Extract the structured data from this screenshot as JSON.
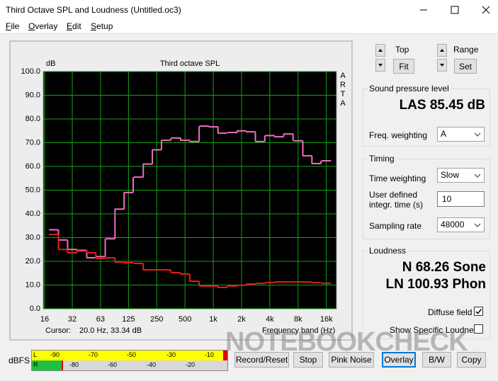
{
  "window": {
    "title": "Third Octave SPL and Loudness (Untitled.oc3)"
  },
  "menu": [
    "File",
    "Overlay",
    "Edit",
    "Setup"
  ],
  "chart_data": {
    "type": "step",
    "title": "Third octave SPL",
    "y_label": "dB",
    "x_label": "Frequency band (Hz)",
    "side_label": "ARTA",
    "cursor_label": "Cursor:",
    "cursor_value": "20.0 Hz, 33.34 dB",
    "x_scale": "log",
    "xlim": [
      15.45,
      20500
    ],
    "ylim": [
      0,
      100
    ],
    "xticks": [
      {
        "value": 16,
        "label": "16"
      },
      {
        "value": 31.5,
        "label": "32"
      },
      {
        "value": 63,
        "label": "63"
      },
      {
        "value": 125,
        "label": "125"
      },
      {
        "value": 250,
        "label": "250"
      },
      {
        "value": 500,
        "label": "500"
      },
      {
        "value": 1000,
        "label": "1k"
      },
      {
        "value": 2000,
        "label": "2k"
      },
      {
        "value": 4000,
        "label": "4k"
      },
      {
        "value": 8000,
        "label": "8k"
      },
      {
        "value": 16000,
        "label": "16k"
      }
    ],
    "yticks": [
      {
        "value": 0,
        "label": "0.0"
      },
      {
        "value": 10,
        "label": "10.0"
      },
      {
        "value": 20,
        "label": "20.0"
      },
      {
        "value": 30,
        "label": "30.0"
      },
      {
        "value": 40,
        "label": "40.0"
      },
      {
        "value": 50,
        "label": "50.0"
      },
      {
        "value": 60,
        "label": "60.0"
      },
      {
        "value": 70,
        "label": "70.0"
      },
      {
        "value": 80,
        "label": "80.0"
      },
      {
        "value": 90,
        "label": "90.0"
      },
      {
        "value": 100,
        "label": "100.0"
      }
    ],
    "grid": true,
    "grid_color": "#13a313",
    "background": "#000000",
    "x": [
      20,
      25,
      31.5,
      40,
      50,
      63,
      80,
      100,
      125,
      160,
      200,
      250,
      315,
      400,
      500,
      630,
      800,
      1000,
      1250,
      1600,
      2000,
      2500,
      3150,
      4000,
      5000,
      6300,
      8000,
      10000,
      12500,
      16000
    ],
    "series": [
      {
        "color": "#f06cc4",
        "values": [
          33.3,
          29,
          25,
          24.5,
          21.5,
          22,
          29.5,
          42,
          49,
          55.5,
          61,
          67,
          71,
          72,
          71,
          70.5,
          77,
          76.7,
          74,
          74.3,
          75,
          74.6,
          70.5,
          73,
          72.5,
          73.7,
          70.8,
          64.5,
          61.2,
          62.4
        ]
      },
      {
        "color": "#e3211e",
        "values": [
          31.3,
          25,
          23.6,
          24.8,
          23.6,
          21.2,
          21.5,
          19.7,
          19.4,
          19.1,
          16.4,
          16.4,
          16.4,
          15.2,
          14.6,
          11.6,
          9.6,
          9.6,
          9.0,
          9.6,
          9.9,
          10.4,
          10.7,
          11,
          11.3,
          11.3,
          11.3,
          11.3,
          11,
          10.7
        ]
      }
    ]
  },
  "controls": {
    "top_label": "Top",
    "fit_button": "Fit",
    "range_label": "Range",
    "set_button": "Set"
  },
  "spl": {
    "group": "Sound pressure level",
    "reading": "LAS 85.45 dB",
    "freq_weighting_label": "Freq. weighting",
    "freq_weighting": "A"
  },
  "timing": {
    "group": "Timing",
    "time_weighting_label": "Time weighting",
    "time_weighting": "Slow",
    "integr_time_label": "User defined integr. time (s)",
    "integr_time": 10,
    "sampling_rate_label": "Sampling rate",
    "sampling_rate": 48000
  },
  "loudness": {
    "group": "Loudness",
    "n": "N 68.26 Sone",
    "ln": "LN 100.93 Phon",
    "diffuse_field_label": "Diffuse field",
    "diffuse_field": true,
    "specific_label": "Show Specific Loudness",
    "specific": false
  },
  "meter": {
    "unit": "dBFS",
    "channels": [
      "L",
      "R"
    ],
    "scale_top": [
      -90,
      -70,
      -50,
      -30,
      -10
    ],
    "scale_bottom": [
      -80,
      -60,
      -40,
      -20
    ]
  },
  "buttons": [
    "Record/Reset",
    "Stop",
    "Pink Noise",
    "Overlay",
    "B/W",
    "Copy"
  ],
  "watermark": "NOTEBOOKCHECK"
}
